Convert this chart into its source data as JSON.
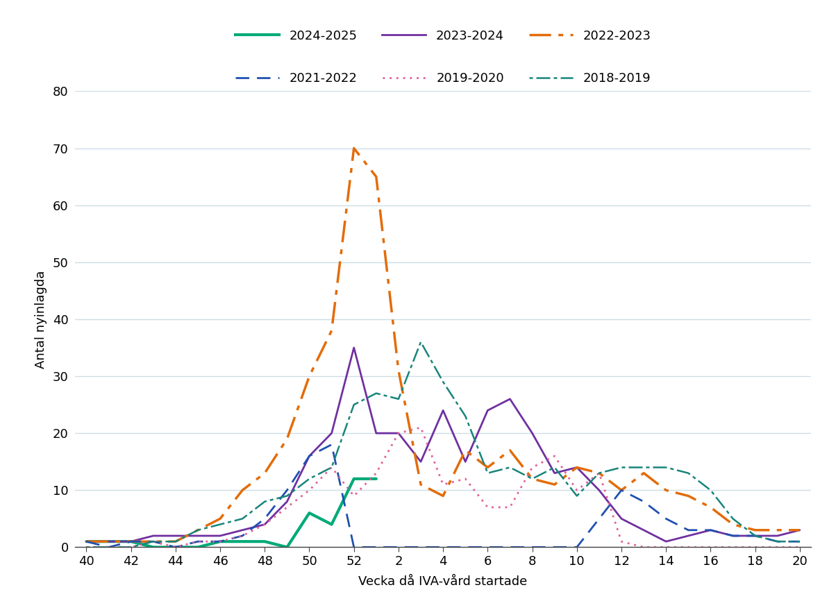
{
  "ylabel": "Antal nyinlagda",
  "xlabel": "Vecka då IVA-vård startade",
  "x_labels": [
    "40",
    "42",
    "44",
    "46",
    "48",
    "50",
    "52",
    "2",
    "4",
    "6",
    "8",
    "10",
    "12",
    "14",
    "16",
    "18",
    "20"
  ],
  "x_tick_pos": [
    0,
    2,
    4,
    6,
    8,
    10,
    12,
    14,
    16,
    18,
    20,
    22,
    24,
    26,
    28,
    30,
    32
  ],
  "xlim": [
    -0.5,
    32.5
  ],
  "ylim": [
    0,
    80
  ],
  "yticks": [
    0,
    10,
    20,
    30,
    40,
    50,
    60,
    70,
    80
  ],
  "background_color": "#ffffff",
  "grid_color": "#ccdde8",
  "series": {
    "2024-2025": {
      "color": "#00aa77",
      "lw": 3.0,
      "ls": "solid",
      "dashes": null,
      "x": [
        0,
        1,
        2,
        3,
        4,
        5,
        6,
        7,
        8,
        9,
        10,
        11,
        12,
        13
      ],
      "y": [
        1,
        1,
        1,
        0,
        0,
        0,
        1,
        1,
        1,
        0,
        6,
        4,
        12,
        12
      ]
    },
    "2023-2024": {
      "color": "#7030a0",
      "lw": 2.0,
      "ls": "solid",
      "dashes": null,
      "x": [
        0,
        1,
        2,
        3,
        4,
        5,
        6,
        7,
        8,
        9,
        10,
        11,
        12,
        13,
        14,
        15,
        16,
        17,
        18,
        19,
        20,
        21,
        22,
        23,
        24,
        25,
        26,
        27,
        28,
        29,
        30,
        31,
        32
      ],
      "y": [
        1,
        1,
        1,
        2,
        2,
        2,
        2,
        3,
        4,
        8,
        16,
        20,
        35,
        20,
        20,
        15,
        24,
        15,
        24,
        26,
        20,
        13,
        14,
        10,
        5,
        3,
        1,
        2,
        3,
        2,
        2,
        2,
        3
      ]
    },
    "2022-2023": {
      "color": "#e36c09",
      "lw": 2.5,
      "ls": "dashdot",
      "dashes": [
        9,
        3,
        2,
        3
      ],
      "x": [
        0,
        1,
        2,
        3,
        4,
        5,
        6,
        7,
        8,
        9,
        10,
        11,
        12,
        13,
        14,
        15,
        16,
        17,
        18,
        19,
        20,
        21,
        22,
        23,
        24,
        25,
        26,
        27,
        28,
        29,
        30,
        31,
        32
      ],
      "y": [
        1,
        1,
        1,
        1,
        1,
        3,
        5,
        10,
        13,
        19,
        30,
        38,
        70,
        65,
        31,
        11,
        9,
        17,
        14,
        17,
        12,
        11,
        14,
        13,
        10,
        13,
        10,
        9,
        7,
        4,
        3,
        3,
        3
      ]
    },
    "2021-2022": {
      "color": "#2050b0",
      "lw": 2.0,
      "ls": "dashed",
      "dashes": [
        7,
        4
      ],
      "x": [
        0,
        1,
        2,
        3,
        4,
        5,
        6,
        7,
        8,
        9,
        10,
        11,
        12,
        13,
        14,
        15,
        16,
        17,
        18,
        19,
        20,
        21,
        22,
        23,
        24,
        25,
        26,
        27,
        28,
        29,
        30,
        31,
        32
      ],
      "y": [
        1,
        0,
        1,
        1,
        0,
        1,
        1,
        2,
        5,
        10,
        16,
        18,
        0,
        0,
        0,
        0,
        0,
        0,
        0,
        0,
        0,
        0,
        0,
        5,
        10,
        8,
        5,
        3,
        3,
        2,
        2,
        1,
        1
      ]
    },
    "2019-2020": {
      "color": "#e0609a",
      "lw": 2.0,
      "ls": "dotted",
      "dashes": [
        1,
        2.5
      ],
      "x": [
        0,
        1,
        2,
        3,
        4,
        5,
        6,
        7,
        8,
        9,
        10,
        11,
        12,
        13,
        14,
        15,
        16,
        17,
        18,
        19,
        20,
        21,
        22,
        23,
        24,
        25,
        26,
        27,
        28,
        29,
        30,
        31,
        32
      ],
      "y": [
        0,
        0,
        0,
        1,
        0,
        1,
        1,
        2,
        4,
        7,
        10,
        14,
        9,
        13,
        20,
        21,
        11,
        12,
        7,
        7,
        14,
        16,
        10,
        13,
        1,
        0,
        0,
        0,
        0,
        0,
        0,
        0,
        0
      ]
    },
    "2018-2019": {
      "color": "#17857a",
      "lw": 1.8,
      "ls": "dashdot",
      "dashes": [
        2,
        2,
        8,
        2
      ],
      "x": [
        0,
        1,
        2,
        3,
        4,
        5,
        6,
        7,
        8,
        9,
        10,
        11,
        12,
        13,
        14,
        15,
        16,
        17,
        18,
        19,
        20,
        21,
        22,
        23,
        24,
        25,
        26,
        27,
        28,
        29,
        30,
        31,
        32
      ],
      "y": [
        0,
        0,
        0,
        1,
        1,
        3,
        4,
        5,
        8,
        9,
        12,
        14,
        25,
        27,
        26,
        36,
        29,
        23,
        13,
        14,
        12,
        14,
        9,
        13,
        14,
        14,
        14,
        13,
        10,
        5,
        2,
        1,
        1
      ]
    }
  },
  "legend_row1": [
    "2024-2025",
    "2023-2024",
    "2022-2023"
  ],
  "legend_row2": [
    "2021-2022",
    "2019-2020",
    "2018-2019"
  ]
}
